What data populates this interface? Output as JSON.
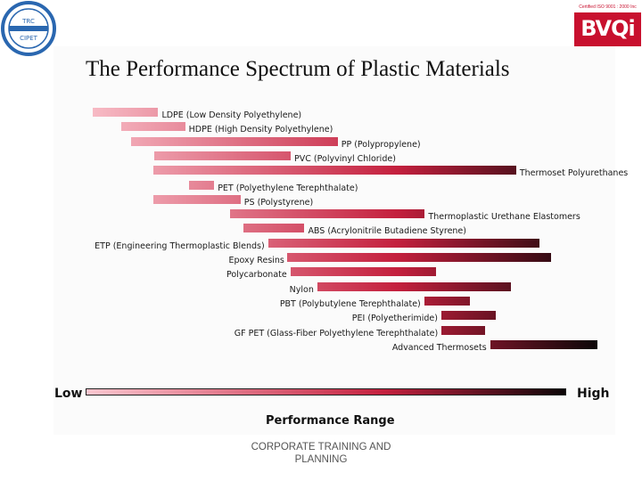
{
  "header": {
    "logo_text_top": "TRC",
    "logo_text_bottom": "CIPET",
    "cert_line": "Certified ISO 9001 : 2000 Inc",
    "cert_brand": "BVQi"
  },
  "title": "The Performance Spectrum of Plastic Materials",
  "materials": [
    {
      "label": "LDPE (Low Density Polyethylene)",
      "start": 0.044,
      "end": 0.168
    },
    {
      "label": "HDPE (High Density Polyethylene)",
      "start": 0.098,
      "end": 0.219
    },
    {
      "label": "PP (Polypropylene)",
      "start": 0.117,
      "end": 0.508
    },
    {
      "label": "PVC (Polyvinyl Chloride)",
      "start": 0.161,
      "end": 0.419
    },
    {
      "label": "Thermoset Polyurethanes",
      "start": 0.159,
      "end": 0.846
    },
    {
      "label": "PET (Polyethylene Terephthalate)",
      "start": 0.226,
      "end": 0.274
    },
    {
      "label": "PS (Polystyrene)",
      "start": 0.159,
      "end": 0.324
    },
    {
      "label": "Thermoplastic Urethane Elastomers",
      "start": 0.304,
      "end": 0.673
    },
    {
      "label": "ABS (Acrylonitrile Butadiene Styrene)",
      "start": 0.33,
      "end": 0.445
    },
    {
      "label": "ETP (Engineering Thermoplastic Blends)",
      "start": 0.377,
      "end": 0.891
    },
    {
      "label": "Epoxy Resins",
      "start": 0.413,
      "end": 0.913
    },
    {
      "label": "Polycarbonate",
      "start": 0.419,
      "end": 0.694
    },
    {
      "label": "Nylon",
      "start": 0.469,
      "end": 0.836
    },
    {
      "label": "PBT (Polybutylene Terephthalate)",
      "start": 0.672,
      "end": 0.759
    },
    {
      "label": "PEI (Polyetherimide)",
      "start": 0.704,
      "end": 0.808
    },
    {
      "label": "GF PET (Glass-Fiber Polyethylene Terephthalate)",
      "start": 0.704,
      "end": 0.787
    },
    {
      "label": "Advanced Thermosets",
      "start": 0.797,
      "end": 1.0
    }
  ],
  "axis": {
    "low": "Low",
    "high": "High",
    "title": "Performance Range"
  },
  "footer": "CORPORATE TRAINING AND PLANNING",
  "colors": {
    "low": "#fbc6cf",
    "high": "#0c0608",
    "mid": "#c4203e"
  }
}
